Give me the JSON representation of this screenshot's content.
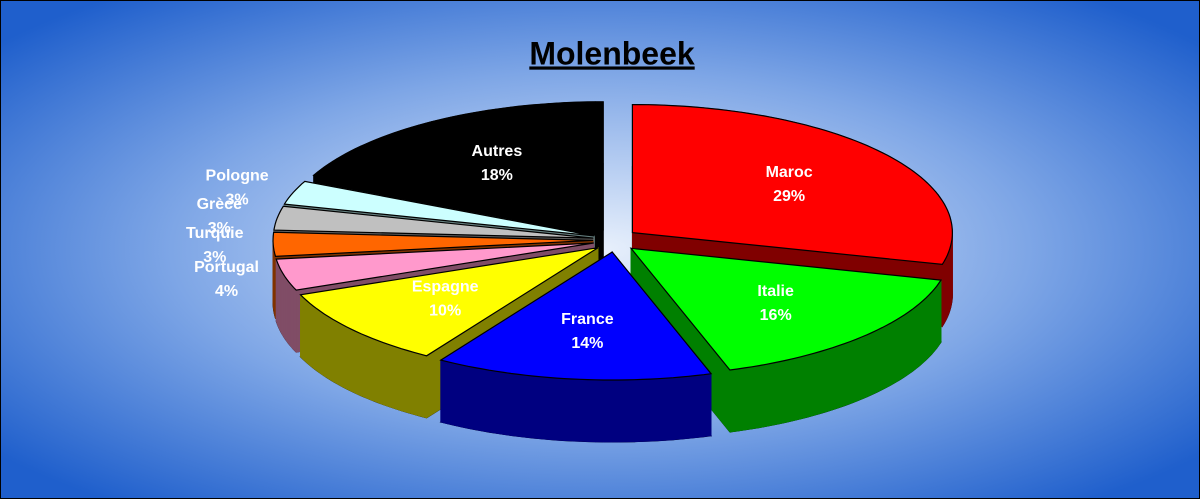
{
  "chart_data": {
    "type": "pie",
    "title": "Molenbeek",
    "categories": [
      "Maroc",
      "Italie",
      "France",
      "Espagne",
      "Portugal",
      "Turquie",
      "Grèce",
      "Pologne",
      "Autres"
    ],
    "values": [
      29,
      16,
      14,
      10,
      4,
      3,
      3,
      3,
      18
    ],
    "value_labels": [
      "29%",
      "16%",
      "14%",
      "10%",
      "4%",
      "3%",
      "3%",
      "3%",
      "18%"
    ],
    "colors": [
      "#ff0000",
      "#00ff00",
      "#0000ff",
      "#ffff00",
      "#ff99cc",
      "#ff6600",
      "#c0c0c0",
      "#ccffff",
      "#000000"
    ]
  }
}
